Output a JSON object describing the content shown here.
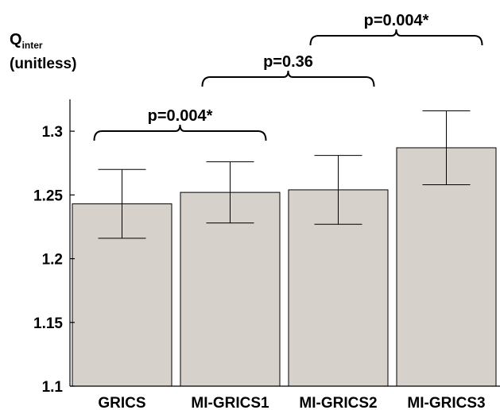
{
  "chart_data": {
    "type": "bar",
    "ylabel": {
      "main": "Q",
      "sub": "inter",
      "unit": "(unitless)"
    },
    "categories": [
      "GRICS",
      "MI-GRICS1",
      "MI-GRICS2",
      "MI-GRICS3"
    ],
    "values": [
      1.243,
      1.252,
      1.254,
      1.287
    ],
    "error_low": [
      1.216,
      1.228,
      1.227,
      1.258
    ],
    "error_high": [
      1.27,
      1.276,
      1.281,
      1.316
    ],
    "ylim": [
      1.1,
      1.325
    ],
    "yticks": [
      1.1,
      1.15,
      1.2,
      1.25,
      1.3
    ],
    "ytick_labels": [
      "1.1",
      "1.15",
      "1.2",
      "1.25",
      "1.3"
    ],
    "bar_color": "#d6d1ca",
    "grid": false,
    "annotations": [
      {
        "from": 0,
        "to": 1,
        "label": "p=0.004*",
        "level": 0
      },
      {
        "from": 1,
        "to": 2,
        "label": "p=0.36",
        "level": 1
      },
      {
        "from": 2,
        "to": 3,
        "label": "p=0.004*",
        "level": 2
      }
    ]
  }
}
